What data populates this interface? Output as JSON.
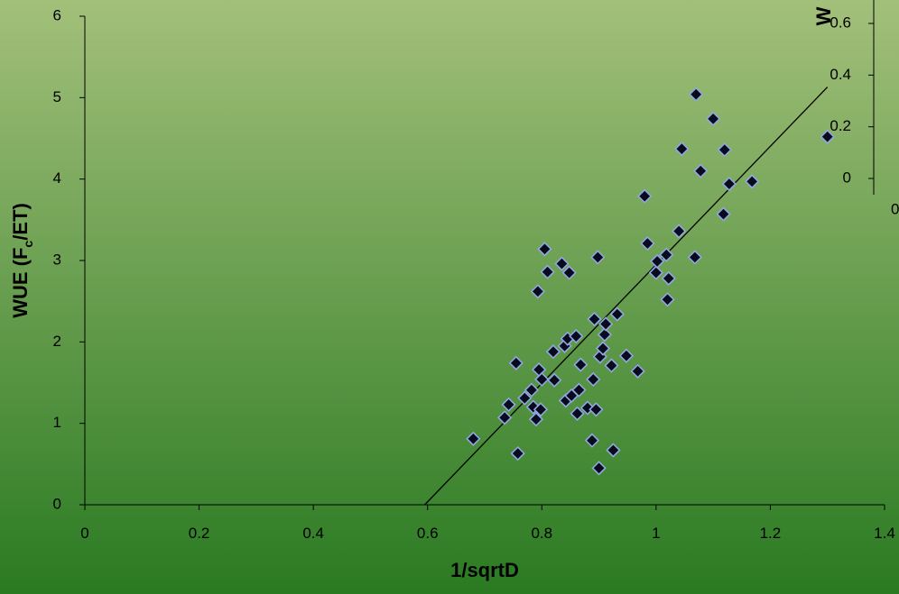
{
  "colors": {
    "background_top": "#a3c07a",
    "background_bottom": "#2a7a22",
    "marker_fill": "#0a0a1e",
    "marker_stroke": "#8fa8e0",
    "line": "#000000"
  },
  "chart_data": [
    {
      "type": "scatter",
      "title": "",
      "xlabel": "1/sqrtD",
      "ylabel_main": "WUE (F",
      "ylabel_sub": "c",
      "ylabel_tail": "/ET)",
      "xlim": [
        0,
        1.4
      ],
      "ylim": [
        0,
        6
      ],
      "xticks": [
        "0",
        "0.2",
        "0.4",
        "0.6",
        "0.8",
        "1",
        "1.2",
        "1.4"
      ],
      "yticks": [
        "0",
        "1",
        "2",
        "3",
        "4",
        "5",
        "6"
      ],
      "grid": false,
      "legend": "none",
      "trendline": {
        "x": [
          0.595,
          1.3
        ],
        "y": [
          0.0,
          5.13
        ]
      },
      "points": [
        [
          0.68,
          0.81
        ],
        [
          0.735,
          1.07
        ],
        [
          0.742,
          1.23
        ],
        [
          0.755,
          1.74
        ],
        [
          0.758,
          0.63
        ],
        [
          0.77,
          1.31
        ],
        [
          0.782,
          1.41
        ],
        [
          0.785,
          1.2
        ],
        [
          0.79,
          1.05
        ],
        [
          0.793,
          2.62
        ],
        [
          0.795,
          1.66
        ],
        [
          0.798,
          1.17
        ],
        [
          0.8,
          1.54
        ],
        [
          0.805,
          3.14
        ],
        [
          0.81,
          2.86
        ],
        [
          0.82,
          1.88
        ],
        [
          0.822,
          1.53
        ],
        [
          0.835,
          2.96
        ],
        [
          0.84,
          1.95
        ],
        [
          0.842,
          1.28
        ],
        [
          0.845,
          2.04
        ],
        [
          0.848,
          2.85
        ],
        [
          0.852,
          1.34
        ],
        [
          0.86,
          2.07
        ],
        [
          0.862,
          1.12
        ],
        [
          0.865,
          1.41
        ],
        [
          0.868,
          1.72
        ],
        [
          0.88,
          1.19
        ],
        [
          0.888,
          0.79
        ],
        [
          0.89,
          1.54
        ],
        [
          0.892,
          2.28
        ],
        [
          0.895,
          1.17
        ],
        [
          0.898,
          3.04
        ],
        [
          0.9,
          0.45
        ],
        [
          0.902,
          1.82
        ],
        [
          0.907,
          1.92
        ],
        [
          0.91,
          2.09
        ],
        [
          0.912,
          2.22
        ],
        [
          0.922,
          1.71
        ],
        [
          0.925,
          0.67
        ],
        [
          0.932,
          2.34
        ],
        [
          0.948,
          1.83
        ],
        [
          0.968,
          1.64
        ],
        [
          0.98,
          3.79
        ],
        [
          0.985,
          3.21
        ],
        [
          1.0,
          2.85
        ],
        [
          1.002,
          2.99
        ],
        [
          1.018,
          3.07
        ],
        [
          1.02,
          2.52
        ],
        [
          1.022,
          2.78
        ],
        [
          1.04,
          3.36
        ],
        [
          1.045,
          4.37
        ],
        [
          1.068,
          3.04
        ],
        [
          1.07,
          5.04
        ],
        [
          1.078,
          4.1
        ],
        [
          1.1,
          4.74
        ],
        [
          1.118,
          3.57
        ],
        [
          1.12,
          4.36
        ],
        [
          1.128,
          3.94
        ],
        [
          1.168,
          3.97
        ],
        [
          1.3,
          4.52
        ]
      ]
    },
    {
      "type": "scatter",
      "title": "",
      "ylabel_fragment": "W",
      "yticks": [
        "0",
        "0.2",
        "0.4",
        "0.6"
      ],
      "xtick_fragment": "0",
      "ylim": [
        0,
        0.7
      ],
      "grid": false,
      "legend": "none",
      "points": []
    }
  ]
}
